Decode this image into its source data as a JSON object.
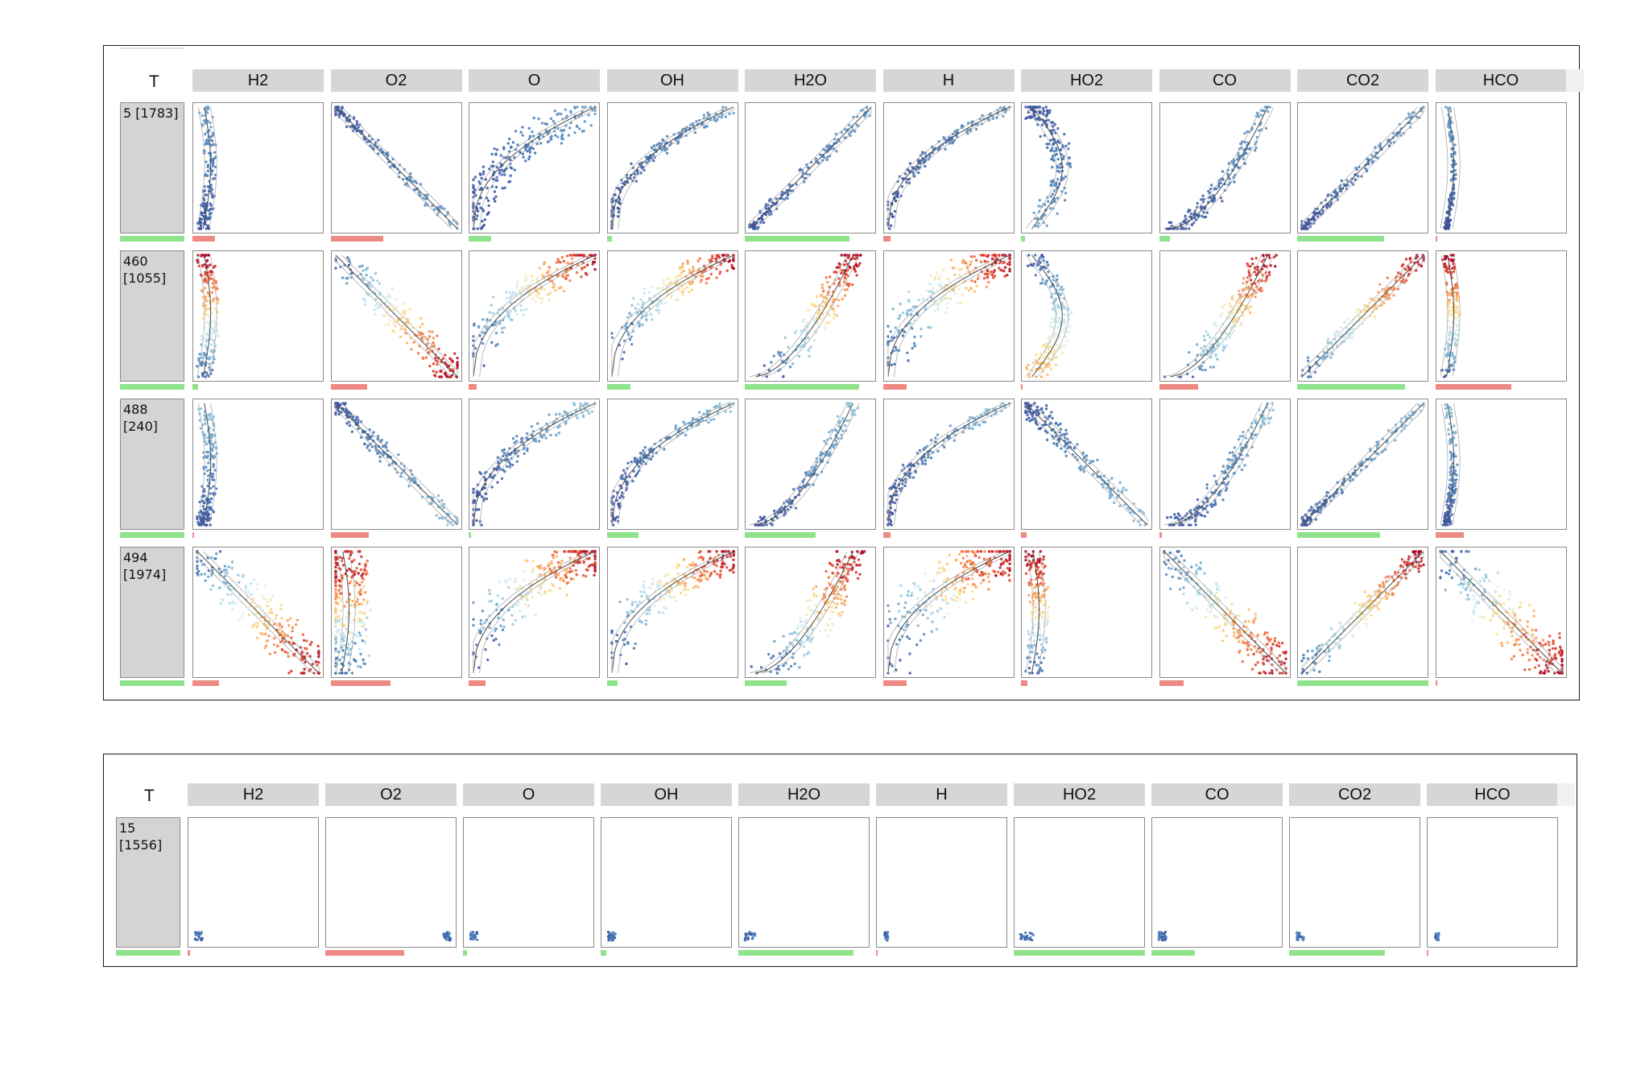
{
  "colors": {
    "positive_bar": "#8fe38b",
    "negative_bar": "#ee8a84",
    "header_bg": "#d6d6d6",
    "row_label_bg": "#d4d4d4",
    "scatter_colormap": "RdYlBu (red = high, blue = low)",
    "curve": "#333333"
  },
  "panels": [
    {
      "header_label": "T",
      "columns": [
        "H2",
        "O2",
        "O",
        "OH",
        "H2O",
        "H",
        "HO2",
        "CO",
        "CO2",
        "HCO"
      ],
      "rows": [
        {
          "label_lines": [
            "5 [1783]"
          ],
          "label_bar_fraction": 1.0,
          "cells": [
            {
              "shape": "vert",
              "spread": 0.05,
              "red": 0.0,
              "bar": {
                "sign": "neg",
                "fraction": 0.17
              }
            },
            {
              "shape": "diag_down",
              "spread": 0.04,
              "red": 0.0,
              "bar": {
                "sign": "neg",
                "fraction": 0.4
              }
            },
            {
              "shape": "concave",
              "spread": 0.12,
              "red": 0.0,
              "bar": {
                "sign": "pos",
                "fraction": 0.17
              }
            },
            {
              "shape": "concave",
              "spread": 0.05,
              "red": 0.0,
              "bar": {
                "sign": "pos",
                "fraction": 0.04
              }
            },
            {
              "shape": "diag_up",
              "spread": 0.04,
              "red": 0.0,
              "bar": {
                "sign": "pos",
                "fraction": 0.8
              }
            },
            {
              "shape": "concave",
              "spread": 0.04,
              "red": 0.0,
              "bar": {
                "sign": "neg",
                "fraction": 0.06
              }
            },
            {
              "shape": "hump",
              "spread": 0.08,
              "red": 0.0,
              "bar": {
                "sign": "pos",
                "fraction": 0.03
              }
            },
            {
              "shape": "steep",
              "spread": 0.06,
              "red": 0.0,
              "bar": {
                "sign": "pos",
                "fraction": 0.08
              }
            },
            {
              "shape": "diag_up",
              "spread": 0.04,
              "red": 0.0,
              "bar": {
                "sign": "pos",
                "fraction": 0.66
              }
            },
            {
              "shape": "vert",
              "spread": 0.02,
              "red": 0.0,
              "bar": {
                "sign": "neg",
                "fraction": 0.01
              }
            }
          ]
        },
        {
          "label_lines": [
            "460",
            "[1055]"
          ],
          "label_bar_fraction": 1.0,
          "cells": [
            {
              "shape": "vert",
              "spread": 0.07,
              "red": 1.0,
              "bar": {
                "sign": "pos",
                "fraction": 0.04
              }
            },
            {
              "shape": "diag_down",
              "spread": 0.1,
              "red": 1.0,
              "bar": {
                "sign": "neg",
                "fraction": 0.28
              }
            },
            {
              "shape": "concave",
              "spread": 0.12,
              "red": 1.0,
              "bar": {
                "sign": "neg",
                "fraction": 0.06
              }
            },
            {
              "shape": "concave",
              "spread": 0.1,
              "red": 1.0,
              "bar": {
                "sign": "pos",
                "fraction": 0.18
              }
            },
            {
              "shape": "steep",
              "spread": 0.1,
              "red": 1.0,
              "bar": {
                "sign": "pos",
                "fraction": 0.87
              }
            },
            {
              "shape": "concave",
              "spread": 0.14,
              "red": 1.0,
              "bar": {
                "sign": "neg",
                "fraction": 0.18
              }
            },
            {
              "shape": "hump",
              "spread": 0.08,
              "red": 0.6,
              "bar": {
                "sign": "neg",
                "fraction": 0.01
              }
            },
            {
              "shape": "steep",
              "spread": 0.1,
              "red": 1.0,
              "bar": {
                "sign": "neg",
                "fraction": 0.3
              }
            },
            {
              "shape": "diag_up",
              "spread": 0.06,
              "red": 1.0,
              "bar": {
                "sign": "pos",
                "fraction": 0.82
              }
            },
            {
              "shape": "vert",
              "spread": 0.05,
              "red": 1.0,
              "bar": {
                "sign": "neg",
                "fraction": 0.58
              }
            }
          ]
        },
        {
          "label_lines": [
            "488",
            "[240]"
          ],
          "label_bar_fraction": 1.0,
          "cells": [
            {
              "shape": "vert",
              "spread": 0.06,
              "red": 0.1,
              "bar": {
                "sign": "neg",
                "fraction": 0.01
              }
            },
            {
              "shape": "diag_down",
              "spread": 0.06,
              "red": 0.1,
              "bar": {
                "sign": "neg",
                "fraction": 0.29
              }
            },
            {
              "shape": "concave",
              "spread": 0.07,
              "red": 0.1,
              "bar": {
                "sign": "pos",
                "fraction": 0.02
              }
            },
            {
              "shape": "concave",
              "spread": 0.05,
              "red": 0.1,
              "bar": {
                "sign": "pos",
                "fraction": 0.24
              }
            },
            {
              "shape": "steep",
              "spread": 0.05,
              "red": 0.1,
              "bar": {
                "sign": "pos",
                "fraction": 0.54
              }
            },
            {
              "shape": "concave",
              "spread": 0.05,
              "red": 0.1,
              "bar": {
                "sign": "neg",
                "fraction": 0.06
              }
            },
            {
              "shape": "diag_down",
              "spread": 0.08,
              "red": 0.1,
              "bar": {
                "sign": "neg",
                "fraction": 0.04
              }
            },
            {
              "shape": "steep",
              "spread": 0.07,
              "red": 0.1,
              "bar": {
                "sign": "neg",
                "fraction": 0.02
              }
            },
            {
              "shape": "diag_up",
              "spread": 0.04,
              "red": 0.1,
              "bar": {
                "sign": "pos",
                "fraction": 0.63
              }
            },
            {
              "shape": "vert",
              "spread": 0.03,
              "red": 0.1,
              "bar": {
                "sign": "neg",
                "fraction": 0.22
              }
            }
          ]
        },
        {
          "label_lines": [
            "494",
            "[1974]"
          ],
          "label_bar_fraction": 1.0,
          "cells": [
            {
              "shape": "diag_down",
              "spread": 0.14,
              "red": 1.0,
              "bar": {
                "sign": "neg",
                "fraction": 0.2
              }
            },
            {
              "shape": "vert",
              "spread": 0.18,
              "red": 1.0,
              "bar": {
                "sign": "neg",
                "fraction": 0.46
              }
            },
            {
              "shape": "concave",
              "spread": 0.16,
              "red": 1.0,
              "bar": {
                "sign": "neg",
                "fraction": 0.13
              }
            },
            {
              "shape": "concave",
              "spread": 0.12,
              "red": 1.0,
              "bar": {
                "sign": "pos",
                "fraction": 0.08
              }
            },
            {
              "shape": "steep",
              "spread": 0.12,
              "red": 1.0,
              "bar": {
                "sign": "pos",
                "fraction": 0.32
              }
            },
            {
              "shape": "concave",
              "spread": 0.18,
              "red": 1.0,
              "bar": {
                "sign": "neg",
                "fraction": 0.18
              }
            },
            {
              "shape": "vert",
              "spread": 0.08,
              "red": 1.0,
              "bar": {
                "sign": "neg",
                "fraction": 0.05
              }
            },
            {
              "shape": "diag_down",
              "spread": 0.14,
              "red": 1.0,
              "bar": {
                "sign": "neg",
                "fraction": 0.19
              }
            },
            {
              "shape": "diag_up",
              "spread": 0.08,
              "red": 1.0,
              "bar": {
                "sign": "pos",
                "fraction": 1.0
              }
            },
            {
              "shape": "diag_down",
              "spread": 0.16,
              "red": 1.0,
              "bar": {
                "sign": "neg",
                "fraction": 0.01
              }
            }
          ]
        }
      ]
    },
    {
      "header_label": "T",
      "columns": [
        "H2",
        "O2",
        "O",
        "OH",
        "H2O",
        "H",
        "HO2",
        "CO",
        "CO2",
        "HCO"
      ],
      "rows": [
        {
          "label_lines": [
            "15",
            "[1556]"
          ],
          "label_bar_fraction": 1.0,
          "cells": [
            {
              "shape": "blob_left",
              "spread": 0.02,
              "red": 0.0,
              "bar": {
                "sign": "neg",
                "fraction": 0.02
              }
            },
            {
              "shape": "blob_right",
              "spread": 0.02,
              "red": 0.0,
              "bar": {
                "sign": "neg",
                "fraction": 0.6
              }
            },
            {
              "shape": "blob_left",
              "spread": 0.02,
              "red": 0.0,
              "bar": {
                "sign": "pos",
                "fraction": 0.03
              }
            },
            {
              "shape": "blob_left",
              "spread": 0.02,
              "red": 0.0,
              "bar": {
                "sign": "pos",
                "fraction": 0.04
              }
            },
            {
              "shape": "blob_left",
              "spread": 0.03,
              "red": 0.0,
              "bar": {
                "sign": "pos",
                "fraction": 0.88
              }
            },
            {
              "shape": "blob_left",
              "spread": 0.01,
              "red": 0.0,
              "bar": {
                "sign": "neg",
                "fraction": 0.0
              }
            },
            {
              "shape": "blob_left",
              "spread": 0.04,
              "red": 0.0,
              "bar": {
                "sign": "pos",
                "fraction": 1.0
              }
            },
            {
              "shape": "blob_left",
              "spread": 0.02,
              "red": 0.0,
              "bar": {
                "sign": "pos",
                "fraction": 0.33
              }
            },
            {
              "shape": "blob_left",
              "spread": 0.02,
              "red": 0.0,
              "bar": {
                "sign": "pos",
                "fraction": 0.73
              }
            },
            {
              "shape": "blob_left",
              "spread": 0.01,
              "red": 0.0,
              "bar": {
                "sign": "neg",
                "fraction": 0.0
              }
            }
          ]
        }
      ]
    }
  ],
  "chart_data": {
    "type": "scatter",
    "subtype": "small-multiples matrix of scatter plots with fitted curves and signed importance bars",
    "columns": [
      "H2",
      "O2",
      "O",
      "OH",
      "H2O",
      "H",
      "HO2",
      "CO",
      "CO2",
      "HCO"
    ],
    "row_labels": [
      "5 [1783]",
      "460 [1055]",
      "488 [240]",
      "494 [1974]",
      "15 [1556]"
    ],
    "grid": false,
    "axes_ticks_shown": false
  }
}
